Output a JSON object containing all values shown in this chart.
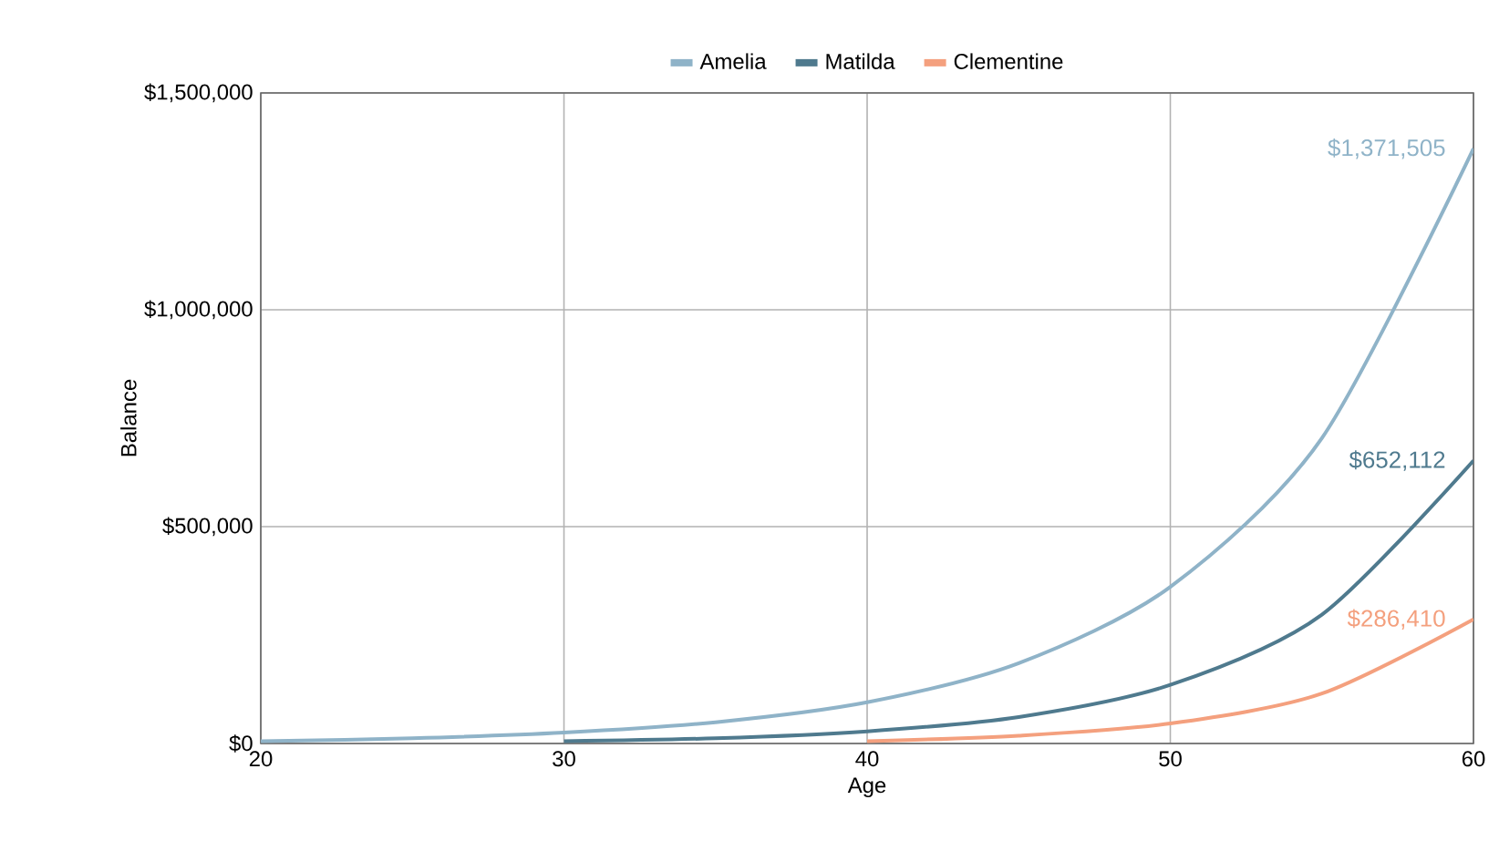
{
  "chart_data": {
    "type": "line",
    "xlabel": "Age",
    "ylabel": "Balance",
    "legend": "top",
    "grid": true,
    "xlim": [
      20,
      60
    ],
    "ylim": [
      0,
      1500000
    ],
    "xticks": [
      20,
      30,
      40,
      50,
      60
    ],
    "yticks": [
      {
        "value": 0,
        "label": "$0"
      },
      {
        "value": 500000,
        "label": "$500,000"
      },
      {
        "value": 1000000,
        "label": "$1,000,000"
      },
      {
        "value": 1500000,
        "label": "$1,500,000"
      }
    ],
    "series": [
      {
        "name": "Amelia",
        "color": "#8fb3c8",
        "x": [
          20,
          25,
          30,
          35,
          40,
          45,
          50,
          55,
          60
        ],
        "values": [
          5000,
          12000,
          25000,
          49000,
          95000,
          185000,
          361000,
          704000,
          1371505
        ],
        "value_labels": [
          null,
          null,
          null,
          null,
          null,
          null,
          null,
          null,
          "$1,371,505"
        ]
      },
      {
        "name": "Matilda",
        "color": "#4f7a8e",
        "x": [
          30,
          35,
          40,
          45,
          50,
          55,
          60
        ],
        "values": [
          5000,
          12000,
          28000,
          61000,
          135000,
          297000,
          652112
        ],
        "value_labels": [
          null,
          null,
          null,
          null,
          null,
          null,
          "$652,112"
        ]
      },
      {
        "name": "Clementine",
        "color": "#f4a07e",
        "x": [
          40,
          45,
          50,
          55,
          60
        ],
        "values": [
          5000,
          18000,
          46000,
          115000,
          286410
        ],
        "value_labels": [
          null,
          null,
          null,
          null,
          "$286,410"
        ]
      }
    ]
  }
}
